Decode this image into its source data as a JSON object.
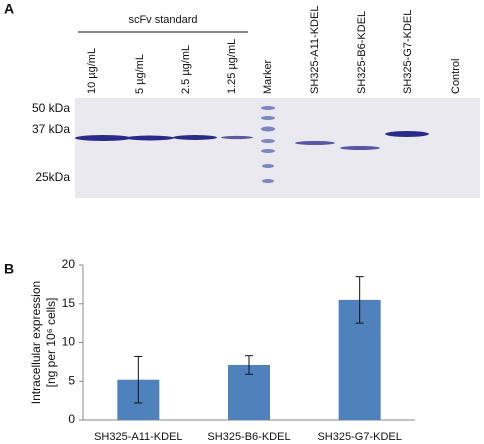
{
  "gel": {
    "panel_label": "A",
    "group_label": "scFv standard",
    "lanes": [
      "10 µg/mL",
      "5 µg/mL",
      "2.5 µg/mL",
      "1.25 µg/mL",
      "Marker",
      "SH325-A11-KDEL",
      "SH325-B6-KDEL",
      "SH325-G7-KDEL",
      "Control"
    ],
    "size_labels": [
      "50 kDa",
      "37 kDa",
      "25kDa"
    ]
  },
  "chart_data": {
    "type": "bar",
    "panel_label": "B",
    "y_label": [
      "Intracellular expression",
      "[ng per 10⁶ cells]"
    ],
    "categories": [
      "SH325-A11-KDEL",
      "SH325-B6-KDEL",
      "SH325-G7-KDEL"
    ],
    "values": [
      5.2,
      7.1,
      15.5
    ],
    "errors": [
      3.0,
      1.2,
      3.0
    ],
    "color": "#4f81bd",
    "ylim": [
      0,
      20
    ],
    "yticks": [
      0,
      5,
      10,
      15,
      20
    ]
  }
}
